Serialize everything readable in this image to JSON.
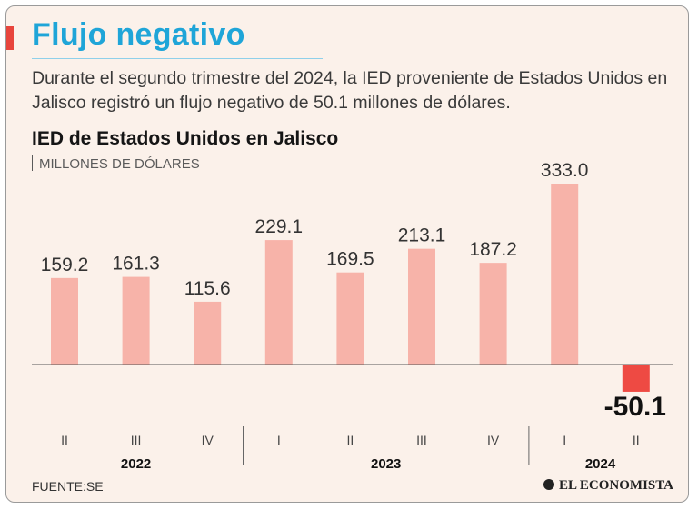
{
  "header": {
    "title": "Flujo negativo",
    "intro": "Durante el segundo trimestre del 2024, la IED proveniente de Estados Unidos en Jalisco registró un flujo negativo de 50.1 millones de dólares."
  },
  "footer": {
    "source": "FUENTE:SE",
    "logo": "EL ECONOMISTA"
  },
  "colors": {
    "positive_bar": "#f7b3a9",
    "negative_bar": "#ee4a43",
    "title": "#1fa5d8"
  },
  "chart_data": {
    "type": "bar",
    "title": "IED de Estados Unidos en Jalisco",
    "ylabel": "MILLONES DE DÓLARES",
    "categories": [
      "II",
      "III",
      "IV",
      "I",
      "II",
      "III",
      "IV",
      "I",
      "II"
    ],
    "years": [
      {
        "label": "2022",
        "from": 0,
        "to": 2
      },
      {
        "label": "2023",
        "from": 3,
        "to": 6
      },
      {
        "label": "2024",
        "from": 7,
        "to": 8
      }
    ],
    "values": [
      159.2,
      161.3,
      115.6,
      229.1,
      169.5,
      213.1,
      187.2,
      333.0,
      -50.1
    ],
    "labels": [
      "159.2",
      "161.3",
      "115.6",
      "229.1",
      "169.5",
      "213.1",
      "187.2",
      "333.0",
      "-50.1"
    ],
    "ylim": [
      -50.1,
      333.0
    ],
    "grid": false
  }
}
